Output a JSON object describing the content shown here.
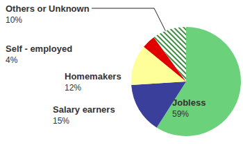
{
  "chart_data": {
    "type": "pie",
    "categories": [
      "Jobless",
      "Salary earners",
      "Homemakers",
      "Self - employed",
      "Others or Unknown"
    ],
    "values": [
      59,
      15,
      12,
      4,
      10
    ],
    "value_labels": [
      "59%",
      "15%",
      "12%",
      "4%",
      "10%"
    ],
    "colors": [
      "#6bd17b",
      "#3a3f9b",
      "#ffff99",
      "#e00000",
      "#3e8e41"
    ]
  }
}
